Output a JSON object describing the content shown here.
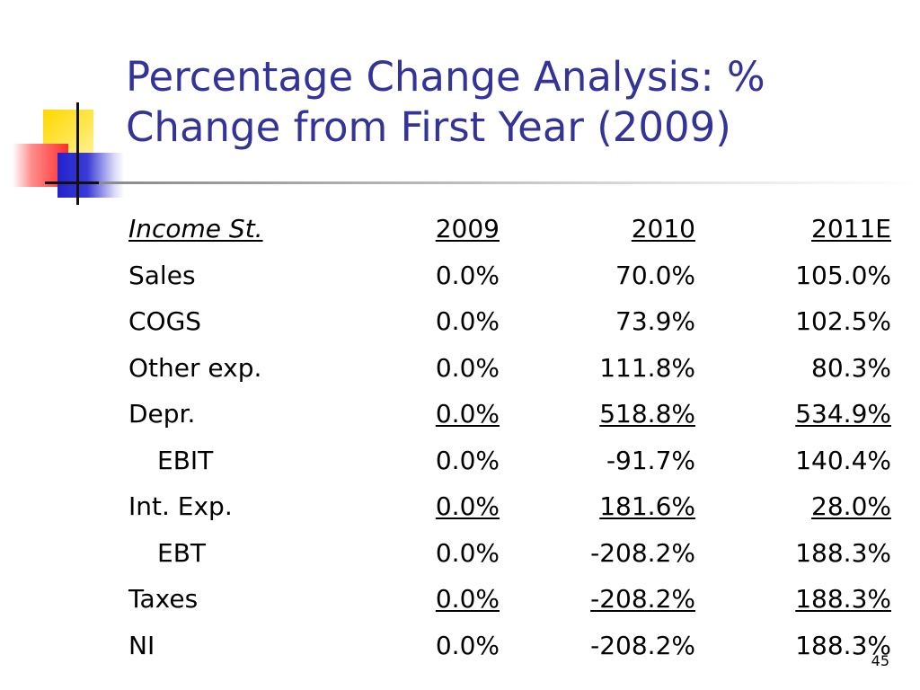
{
  "slide": {
    "title_line1": "Percentage Change Analysis: %",
    "title_line2": "Change from First Year (2009)",
    "page_number": "45"
  },
  "table": {
    "header": {
      "label": "Income St.",
      "col_2009": "2009",
      "col_2010": "2010",
      "col_2011": "2011E"
    },
    "rows": [
      {
        "label": "Sales",
        "v2009": "0.0%",
        "v2010": "70.0%",
        "v2011": "105.0%",
        "underline": false,
        "indent": false
      },
      {
        "label": "COGS",
        "v2009": "0.0%",
        "v2010": "73.9%",
        "v2011": "102.5%",
        "underline": false,
        "indent": false
      },
      {
        "label": "Other exp.",
        "v2009": "0.0%",
        "v2010": "111.8%",
        "v2011": "80.3%",
        "underline": false,
        "indent": false
      },
      {
        "label": "Depr.",
        "v2009": "0.0%",
        "v2010": "518.8%",
        "v2011": "534.9%",
        "underline": true,
        "indent": false
      },
      {
        "label": "EBIT",
        "v2009": "0.0%",
        "v2010": "-91.7%",
        "v2011": "140.4%",
        "underline": false,
        "indent": true
      },
      {
        "label": "Int. Exp.",
        "v2009": "0.0%",
        "v2010": "181.6%",
        "v2011": "28.0%",
        "underline": true,
        "indent": false
      },
      {
        "label": "EBT",
        "v2009": "0.0%",
        "v2010": "-208.2%",
        "v2011": "188.3%",
        "underline": false,
        "indent": true
      },
      {
        "label": "Taxes",
        "v2009": "0.0%",
        "v2010": "-208.2%",
        "v2011": "188.3%",
        "underline": true,
        "indent": false
      },
      {
        "label": "NI",
        "v2009": "0.0%",
        "v2010": "-208.2%",
        "v2011": "188.3%",
        "underline": false,
        "indent": false
      }
    ]
  },
  "colors": {
    "title": "#333399",
    "text": "#000000"
  }
}
